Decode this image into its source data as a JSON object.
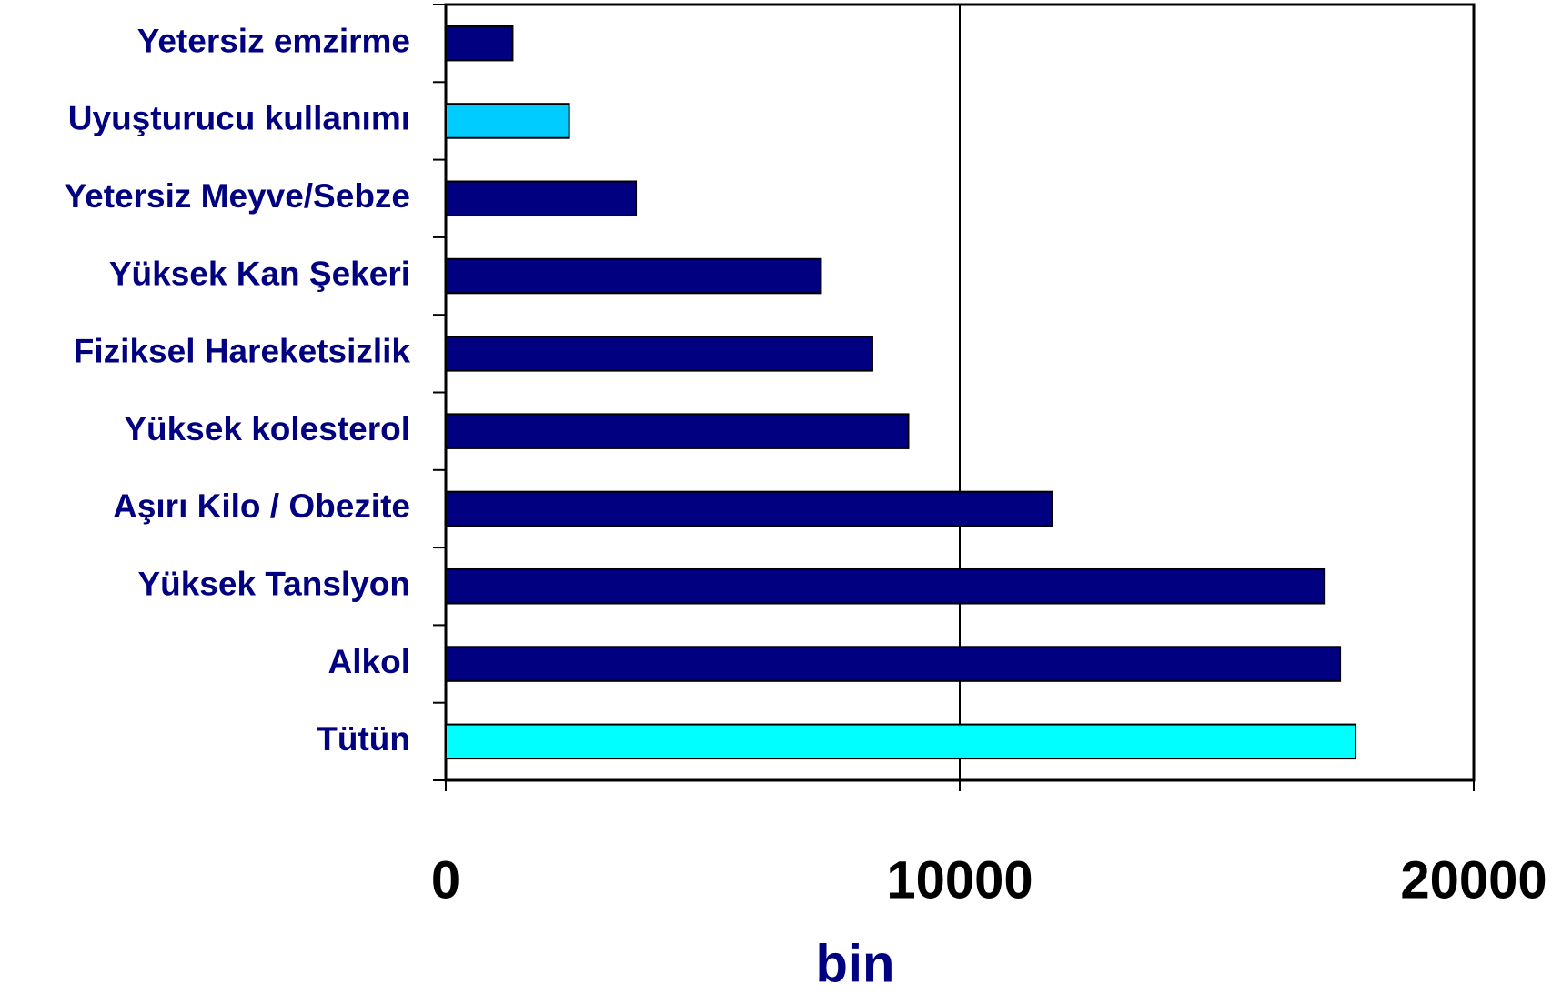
{
  "chart_data": {
    "type": "hbar",
    "categories": [
      "Yetersiz emzirme",
      "Uyuşturucu kullanımı",
      "Yetersiz Meyve/Sebze",
      "Yüksek Kan Şekeri",
      "Fiziksel Hareketsizlik",
      "Yüksek kolesterol",
      "Aşırı Kilo / Obezite",
      "Yüksek Tanslyon",
      "Alkol",
      "Tütün"
    ],
    "values": [
      1300,
      2400,
      3700,
      7300,
      8300,
      9000,
      11800,
      17100,
      17400,
      17700
    ],
    "colors": [
      "#000080",
      "#00ccff",
      "#000080",
      "#000080",
      "#000080",
      "#000080",
      "#000080",
      "#000080",
      "#000080",
      "#00ffff"
    ],
    "xlabel": "bin",
    "xlim": [
      0,
      20000
    ],
    "xticks": [
      0,
      10000,
      20000
    ],
    "grid": true
  }
}
